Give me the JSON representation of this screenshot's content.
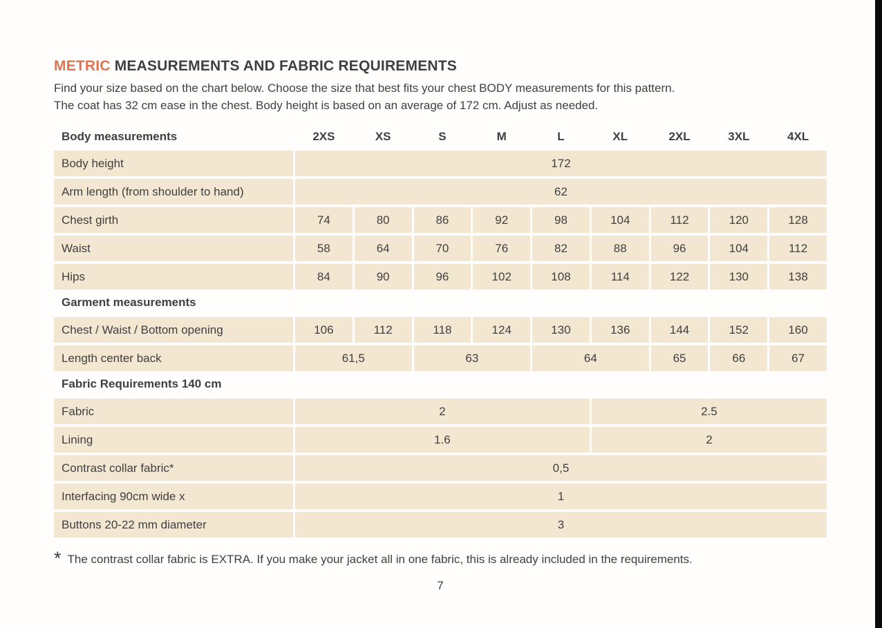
{
  "page": {
    "title_accent": "METRIC",
    "title_rest": " MEASUREMENTS AND FABRIC REQUIREMENTS",
    "intro_line1": "Find your size based on the chart below. Choose the size that best fits your chest BODY measurements for this pattern.",
    "intro_line2": "The coat has 32 cm ease in the chest. Body height is based on an average of 172 cm. Adjust as needed.",
    "footnote_marker": "*",
    "footnote_text": "The contrast collar fabric is EXTRA. If you make your jacket all in one fabric, this is already included in the requirements.",
    "page_number": "7"
  },
  "colors": {
    "accent": "#dd7450",
    "cell_bg": "#f4e7d2",
    "text": "#3f3f3f",
    "edge_bar": "#0b0b0b"
  },
  "table": {
    "header": {
      "label": "Body measurements",
      "sizes": [
        "2XS",
        "XS",
        "S",
        "M",
        "L",
        "XL",
        "2XL",
        "3XL",
        "4XL"
      ]
    },
    "rows": [
      {
        "type": "data",
        "label": "Body height",
        "cells": [
          {
            "text": "172",
            "span": 9
          }
        ]
      },
      {
        "type": "data",
        "label": "Arm length (from shoulder to hand)",
        "cells": [
          {
            "text": "62",
            "span": 9
          }
        ]
      },
      {
        "type": "data",
        "label": "Chest girth",
        "cells": [
          {
            "text": "74",
            "span": 1
          },
          {
            "text": "80",
            "span": 1
          },
          {
            "text": "86",
            "span": 1
          },
          {
            "text": "92",
            "span": 1
          },
          {
            "text": "98",
            "span": 1
          },
          {
            "text": "104",
            "span": 1
          },
          {
            "text": "112",
            "span": 1
          },
          {
            "text": "120",
            "span": 1
          },
          {
            "text": "128",
            "span": 1
          }
        ]
      },
      {
        "type": "data",
        "label": "Waist",
        "cells": [
          {
            "text": "58",
            "span": 1
          },
          {
            "text": "64",
            "span": 1
          },
          {
            "text": "70",
            "span": 1
          },
          {
            "text": "76",
            "span": 1
          },
          {
            "text": "82",
            "span": 1
          },
          {
            "text": "88",
            "span": 1
          },
          {
            "text": "96",
            "span": 1
          },
          {
            "text": "104",
            "span": 1
          },
          {
            "text": "112",
            "span": 1
          }
        ]
      },
      {
        "type": "data",
        "label": "Hips",
        "cells": [
          {
            "text": "84",
            "span": 1
          },
          {
            "text": "90",
            "span": 1
          },
          {
            "text": "96",
            "span": 1
          },
          {
            "text": "102",
            "span": 1
          },
          {
            "text": "108",
            "span": 1
          },
          {
            "text": "114",
            "span": 1
          },
          {
            "text": "122",
            "span": 1
          },
          {
            "text": "130",
            "span": 1
          },
          {
            "text": "138",
            "span": 1
          }
        ]
      },
      {
        "type": "section",
        "label": "Garment measurements"
      },
      {
        "type": "data",
        "label": "Chest / Waist / Bottom opening",
        "cells": [
          {
            "text": "106",
            "span": 1
          },
          {
            "text": "112",
            "span": 1
          },
          {
            "text": "118",
            "span": 1
          },
          {
            "text": "124",
            "span": 1
          },
          {
            "text": "130",
            "span": 1
          },
          {
            "text": "136",
            "span": 1
          },
          {
            "text": "144",
            "span": 1
          },
          {
            "text": "152",
            "span": 1
          },
          {
            "text": "160",
            "span": 1
          }
        ]
      },
      {
        "type": "data",
        "label": "Length center back",
        "cells": [
          {
            "text": "61,5",
            "span": 2
          },
          {
            "text": "63",
            "span": 2
          },
          {
            "text": "64",
            "span": 2
          },
          {
            "text": "65",
            "span": 1
          },
          {
            "text": "66",
            "span": 1
          },
          {
            "text": "67",
            "span": 1
          }
        ]
      },
      {
        "type": "section",
        "label": "Fabric Requirements 140 cm"
      },
      {
        "type": "data",
        "label": "Fabric",
        "cells": [
          {
            "text": "2",
            "span": 5
          },
          {
            "text": "2.5",
            "span": 4
          }
        ]
      },
      {
        "type": "data",
        "label": "Lining",
        "cells": [
          {
            "text": "1.6",
            "span": 5
          },
          {
            "text": "2",
            "span": 4
          }
        ]
      },
      {
        "type": "data",
        "label": "Contrast collar fabric*",
        "cells": [
          {
            "text": "0,5",
            "span": 9
          }
        ]
      },
      {
        "type": "data",
        "label": "Interfacing  90cm wide x",
        "cells": [
          {
            "text": "1",
            "span": 9
          }
        ]
      },
      {
        "type": "data",
        "label": "Buttons 20-22 mm diameter",
        "cells": [
          {
            "text": "3",
            "span": 9
          }
        ]
      }
    ]
  }
}
